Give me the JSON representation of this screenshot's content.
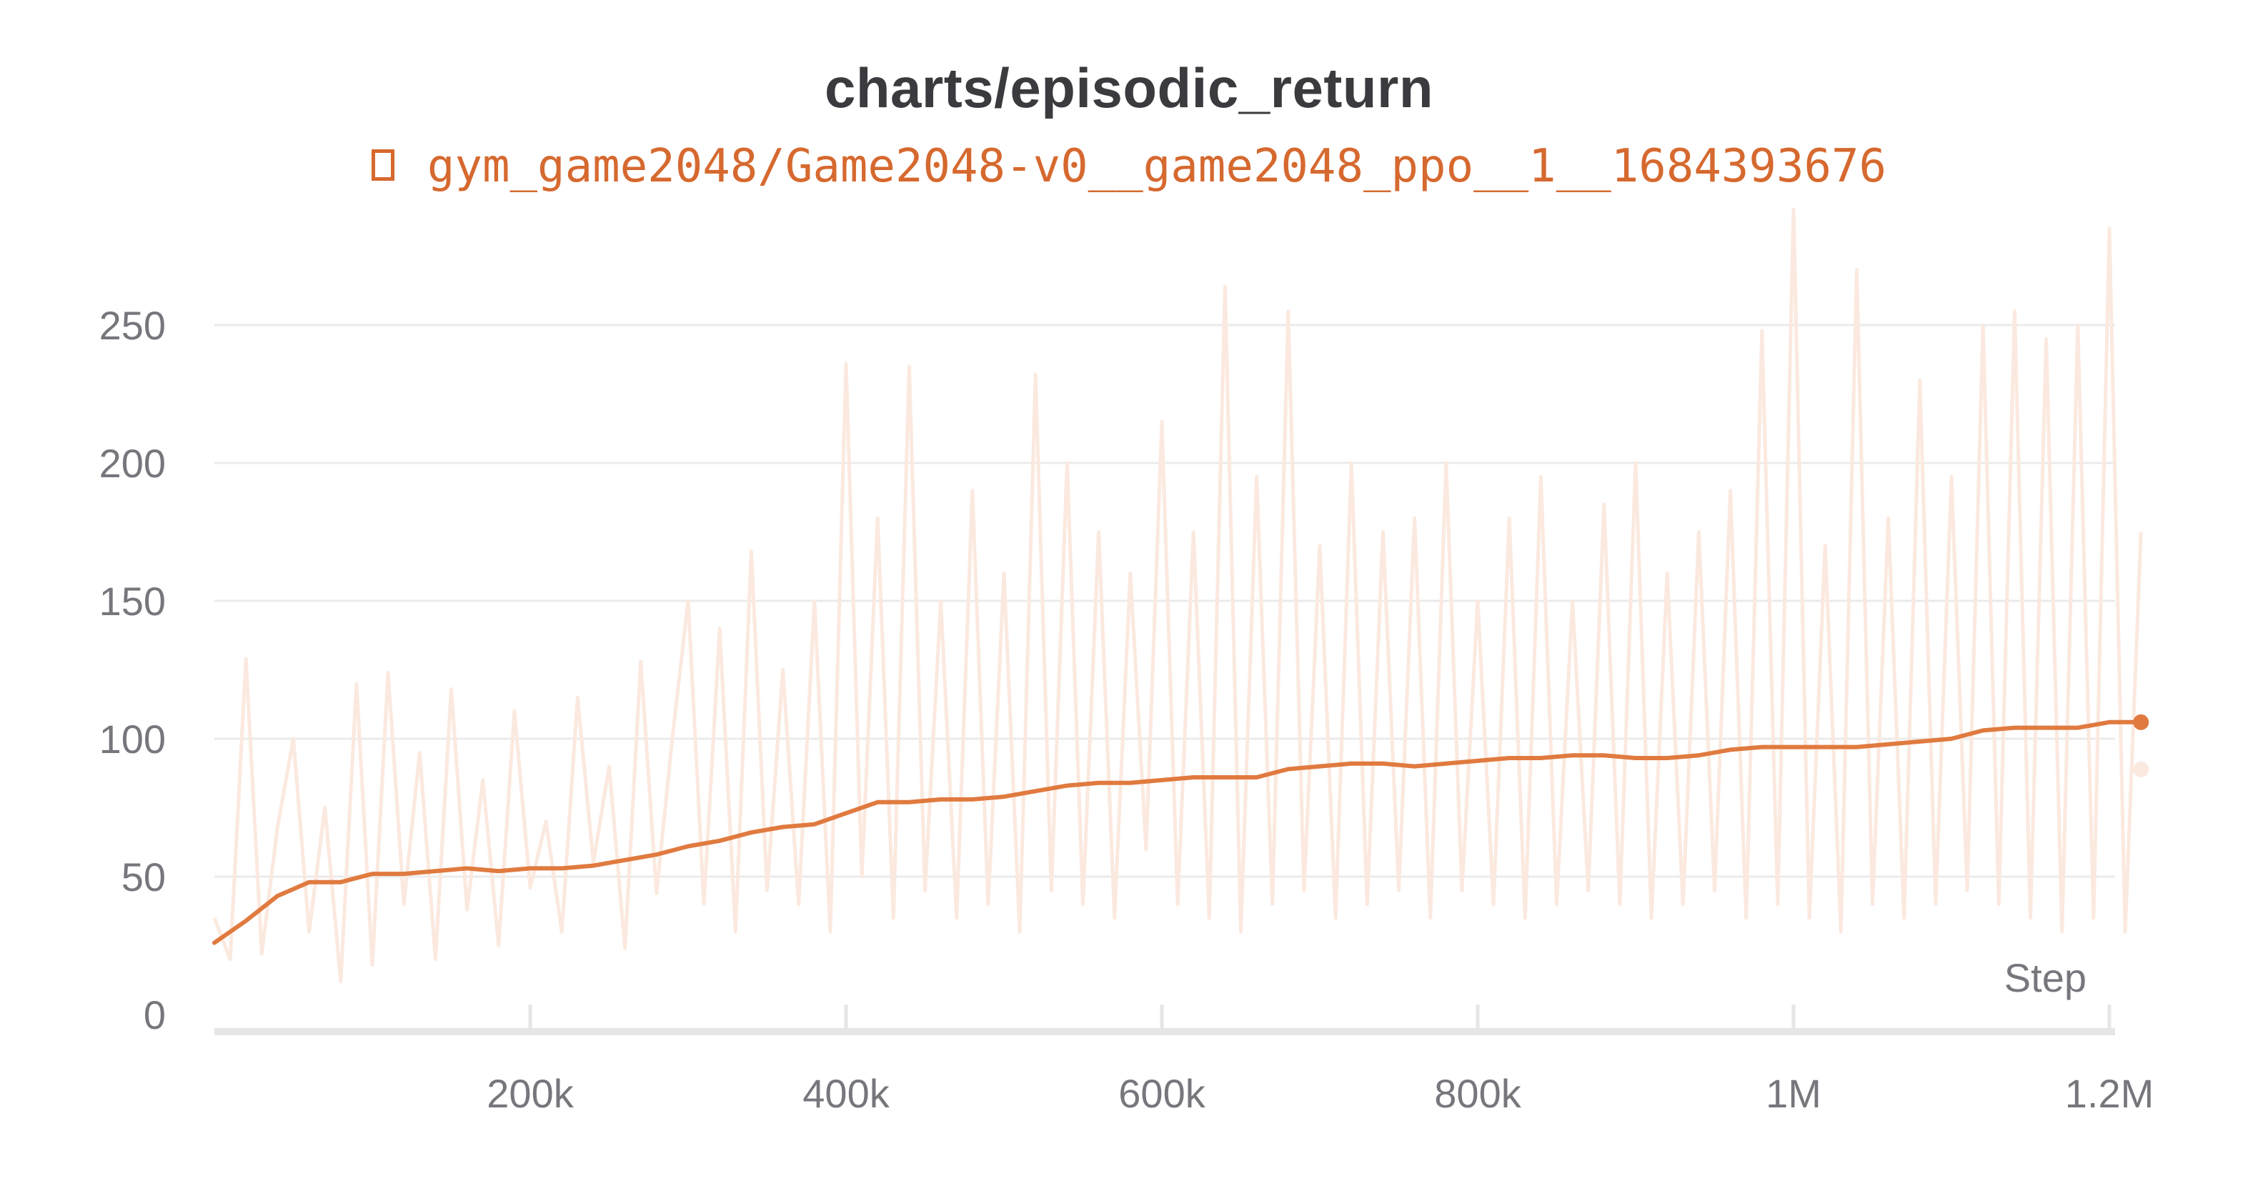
{
  "chart_data": {
    "type": "line",
    "title": "charts/episodic_return",
    "xlabel": "Step",
    "ylabel": "",
    "xlim": [
      0,
      1220000
    ],
    "ylim": [
      0,
      280
    ],
    "x_ticks": [
      {
        "value": 200000,
        "label": "200k"
      },
      {
        "value": 400000,
        "label": "400k"
      },
      {
        "value": 600000,
        "label": "600k"
      },
      {
        "value": 800000,
        "label": "800k"
      },
      {
        "value": 1000000,
        "label": "1M"
      },
      {
        "value": 1200000,
        "label": "1.2M"
      }
    ],
    "y_ticks": [
      {
        "value": 0,
        "label": "0"
      },
      {
        "value": 50,
        "label": "50"
      },
      {
        "value": 100,
        "label": "100"
      },
      {
        "value": 150,
        "label": "150"
      },
      {
        "value": 200,
        "label": "200"
      },
      {
        "value": 250,
        "label": "250"
      }
    ],
    "grid": true,
    "legend": "top-center",
    "series": [
      {
        "name": "gym_game2048/Game2048-v0__game2048_ppo__1__1684393676",
        "color": "#e07a3f",
        "kind": "smoothed",
        "x": [
          0,
          20000,
          40000,
          60000,
          80000,
          100000,
          120000,
          140000,
          160000,
          180000,
          200000,
          220000,
          240000,
          260000,
          280000,
          300000,
          320000,
          340000,
          360000,
          380000,
          400000,
          420000,
          440000,
          460000,
          480000,
          500000,
          520000,
          540000,
          560000,
          580000,
          600000,
          620000,
          640000,
          660000,
          680000,
          700000,
          720000,
          740000,
          760000,
          780000,
          800000,
          820000,
          840000,
          860000,
          880000,
          900000,
          920000,
          940000,
          960000,
          980000,
          1000000,
          1020000,
          1040000,
          1060000,
          1080000,
          1100000,
          1120000,
          1140000,
          1160000,
          1180000,
          1200000,
          1220000
        ],
        "y": [
          26,
          34,
          43,
          48,
          48,
          51,
          51,
          52,
          53,
          52,
          53,
          53,
          54,
          56,
          58,
          61,
          63,
          66,
          68,
          69,
          73,
          77,
          77,
          78,
          78,
          79,
          81,
          83,
          84,
          84,
          85,
          86,
          86,
          86,
          89,
          90,
          91,
          91,
          90,
          91,
          92,
          93,
          93,
          94,
          94,
          93,
          93,
          94,
          96,
          97,
          97,
          97,
          97,
          98,
          99,
          100,
          103,
          104,
          104,
          104,
          106,
          106
        ]
      },
      {
        "name": "gym_game2048/Game2048-v0__game2048_ppo__1__1684393676",
        "color": "#fbe9df",
        "kind": "raw",
        "x": [
          0,
          10000,
          20000,
          30000,
          40000,
          50000,
          60000,
          70000,
          80000,
          90000,
          100000,
          110000,
          120000,
          130000,
          140000,
          150000,
          160000,
          170000,
          180000,
          190000,
          200000,
          210000,
          220000,
          230000,
          240000,
          250000,
          260000,
          270000,
          280000,
          290000,
          300000,
          310000,
          320000,
          330000,
          340000,
          350000,
          360000,
          370000,
          380000,
          390000,
          400000,
          410000,
          420000,
          430000,
          440000,
          450000,
          460000,
          470000,
          480000,
          490000,
          500000,
          510000,
          520000,
          530000,
          540000,
          550000,
          560000,
          570000,
          580000,
          590000,
          600000,
          610000,
          620000,
          630000,
          640000,
          650000,
          660000,
          670000,
          680000,
          690000,
          700000,
          710000,
          720000,
          730000,
          740000,
          750000,
          760000,
          770000,
          780000,
          790000,
          800000,
          810000,
          820000,
          830000,
          840000,
          850000,
          860000,
          870000,
          880000,
          890000,
          900000,
          910000,
          920000,
          930000,
          940000,
          950000,
          960000,
          970000,
          980000,
          990000,
          1000000,
          1010000,
          1020000,
          1030000,
          1040000,
          1050000,
          1060000,
          1070000,
          1080000,
          1090000,
          1100000,
          1110000,
          1120000,
          1130000,
          1140000,
          1150000,
          1160000,
          1170000,
          1180000,
          1190000,
          1200000,
          1210000,
          1220000
        ],
        "y": [
          35,
          20,
          129,
          22,
          68,
          100,
          30,
          75,
          12,
          120,
          18,
          124,
          40,
          95,
          20,
          118,
          38,
          85,
          25,
          110,
          46,
          70,
          30,
          115,
          55,
          90,
          24,
          128,
          44,
          100,
          150,
          40,
          140,
          30,
          168,
          45,
          125,
          40,
          150,
          30,
          236,
          50,
          180,
          35,
          235,
          45,
          150,
          35,
          190,
          40,
          160,
          30,
          232,
          45,
          200,
          40,
          175,
          35,
          160,
          60,
          215,
          40,
          175,
          35,
          264,
          30,
          195,
          40,
          255,
          45,
          170,
          35,
          200,
          40,
          175,
          45,
          180,
          35,
          200,
          45,
          150,
          40,
          180,
          35,
          195,
          40,
          150,
          45,
          185,
          40,
          200,
          35,
          160,
          40,
          175,
          45,
          190,
          35,
          248,
          40,
          292,
          35,
          170,
          30,
          270,
          40,
          180,
          35,
          230,
          40,
          195,
          45,
          250,
          40,
          255,
          35,
          245,
          30,
          250,
          35,
          285,
          30,
          175
        ]
      }
    ],
    "last_point": {
      "x": 1220000,
      "y": 106
    }
  }
}
